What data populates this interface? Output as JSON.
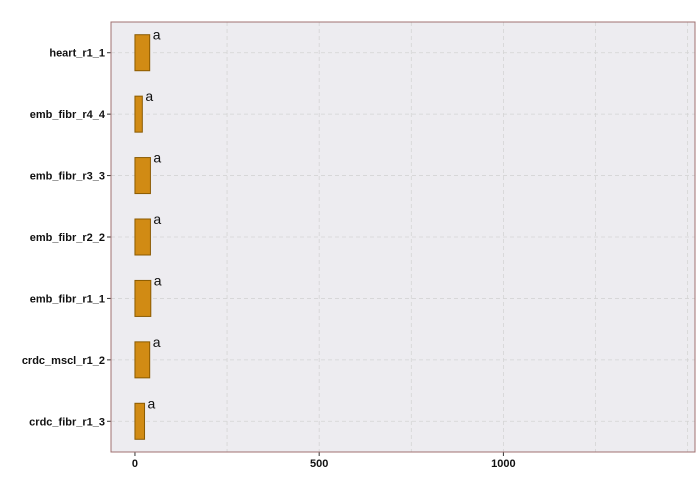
{
  "chart_data": {
    "type": "bar",
    "orientation": "horizontal",
    "categories": [
      "heart_r1_1",
      "emb_fibr_r4_4",
      "emb_fibr_r3_3",
      "emb_fibr_r2_2",
      "emb_fibr_r1_1",
      "crdc_mscl_r1_2",
      "crdc_fibr_r1_3"
    ],
    "values": [
      40,
      20,
      42,
      42,
      43,
      40,
      26
    ],
    "labels": [
      "a",
      "a",
      "a",
      "a",
      "a",
      "a",
      "a"
    ],
    "xlim": [
      -65,
      1520
    ],
    "xticks": [
      0,
      500,
      1000
    ],
    "xlabel": "",
    "ylabel": "",
    "title": "",
    "grid": true,
    "legend": "none",
    "colors": {
      "bar_fill": "#d18b14",
      "bar_stroke": "#8a5a00",
      "panel_bg": "#edecf0",
      "panel_border": "#a07070"
    }
  }
}
